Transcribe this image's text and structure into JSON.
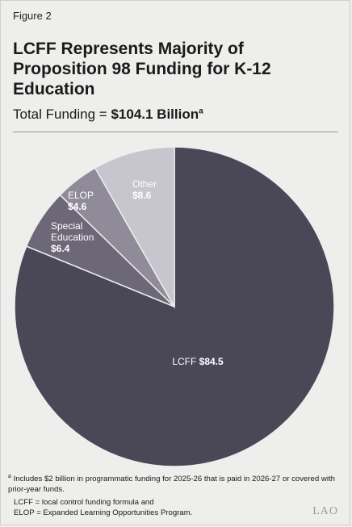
{
  "figure_label": "Figure 2",
  "title": "LCFF Represents Majority of Proposition 98 Funding for K-12 Education",
  "subtitle_prefix": "Total Funding = ",
  "subtitle_value": "$104.1 Billion",
  "subtitle_marker": "a",
  "chart_data": {
    "type": "pie",
    "title": "LCFF Represents Majority of Proposition 98 Funding for K-12 Education",
    "subtitle": "Total Funding = $104.1 Billion",
    "slices": [
      {
        "label": "LCFF",
        "value": 84.5,
        "value_label": "$84.5",
        "color": "#4a4757",
        "text_color": "#ffffff"
      },
      {
        "label": "Special Education",
        "label_lines": [
          "Special",
          "Education"
        ],
        "value": 6.4,
        "value_label": "$6.4",
        "color": "#6d6878",
        "text_color": "#ffffff"
      },
      {
        "label": "ELOP",
        "value": 4.6,
        "value_label": "$4.6",
        "color": "#8f8b99",
        "text_color": "#ffffff"
      },
      {
        "label": "Other",
        "value": 8.6,
        "value_label": "$8.6",
        "color": "#c7c5cd",
        "text_color": "#ffffff"
      }
    ],
    "start": "12 o'clock",
    "direction": "clockwise",
    "unit": "billions of dollars"
  },
  "footnotes": {
    "a_marker": "a",
    "a_text": "Includes $2 billion in programmatic funding for 2025-26 that is paid in 2026-27 or covered with prior-year funds.",
    "abbrev_1": "LCFF = local control funding formula and",
    "abbrev_2": "ELOP = Expanded Learning Opportunities Program."
  },
  "logo_text": "LAO"
}
